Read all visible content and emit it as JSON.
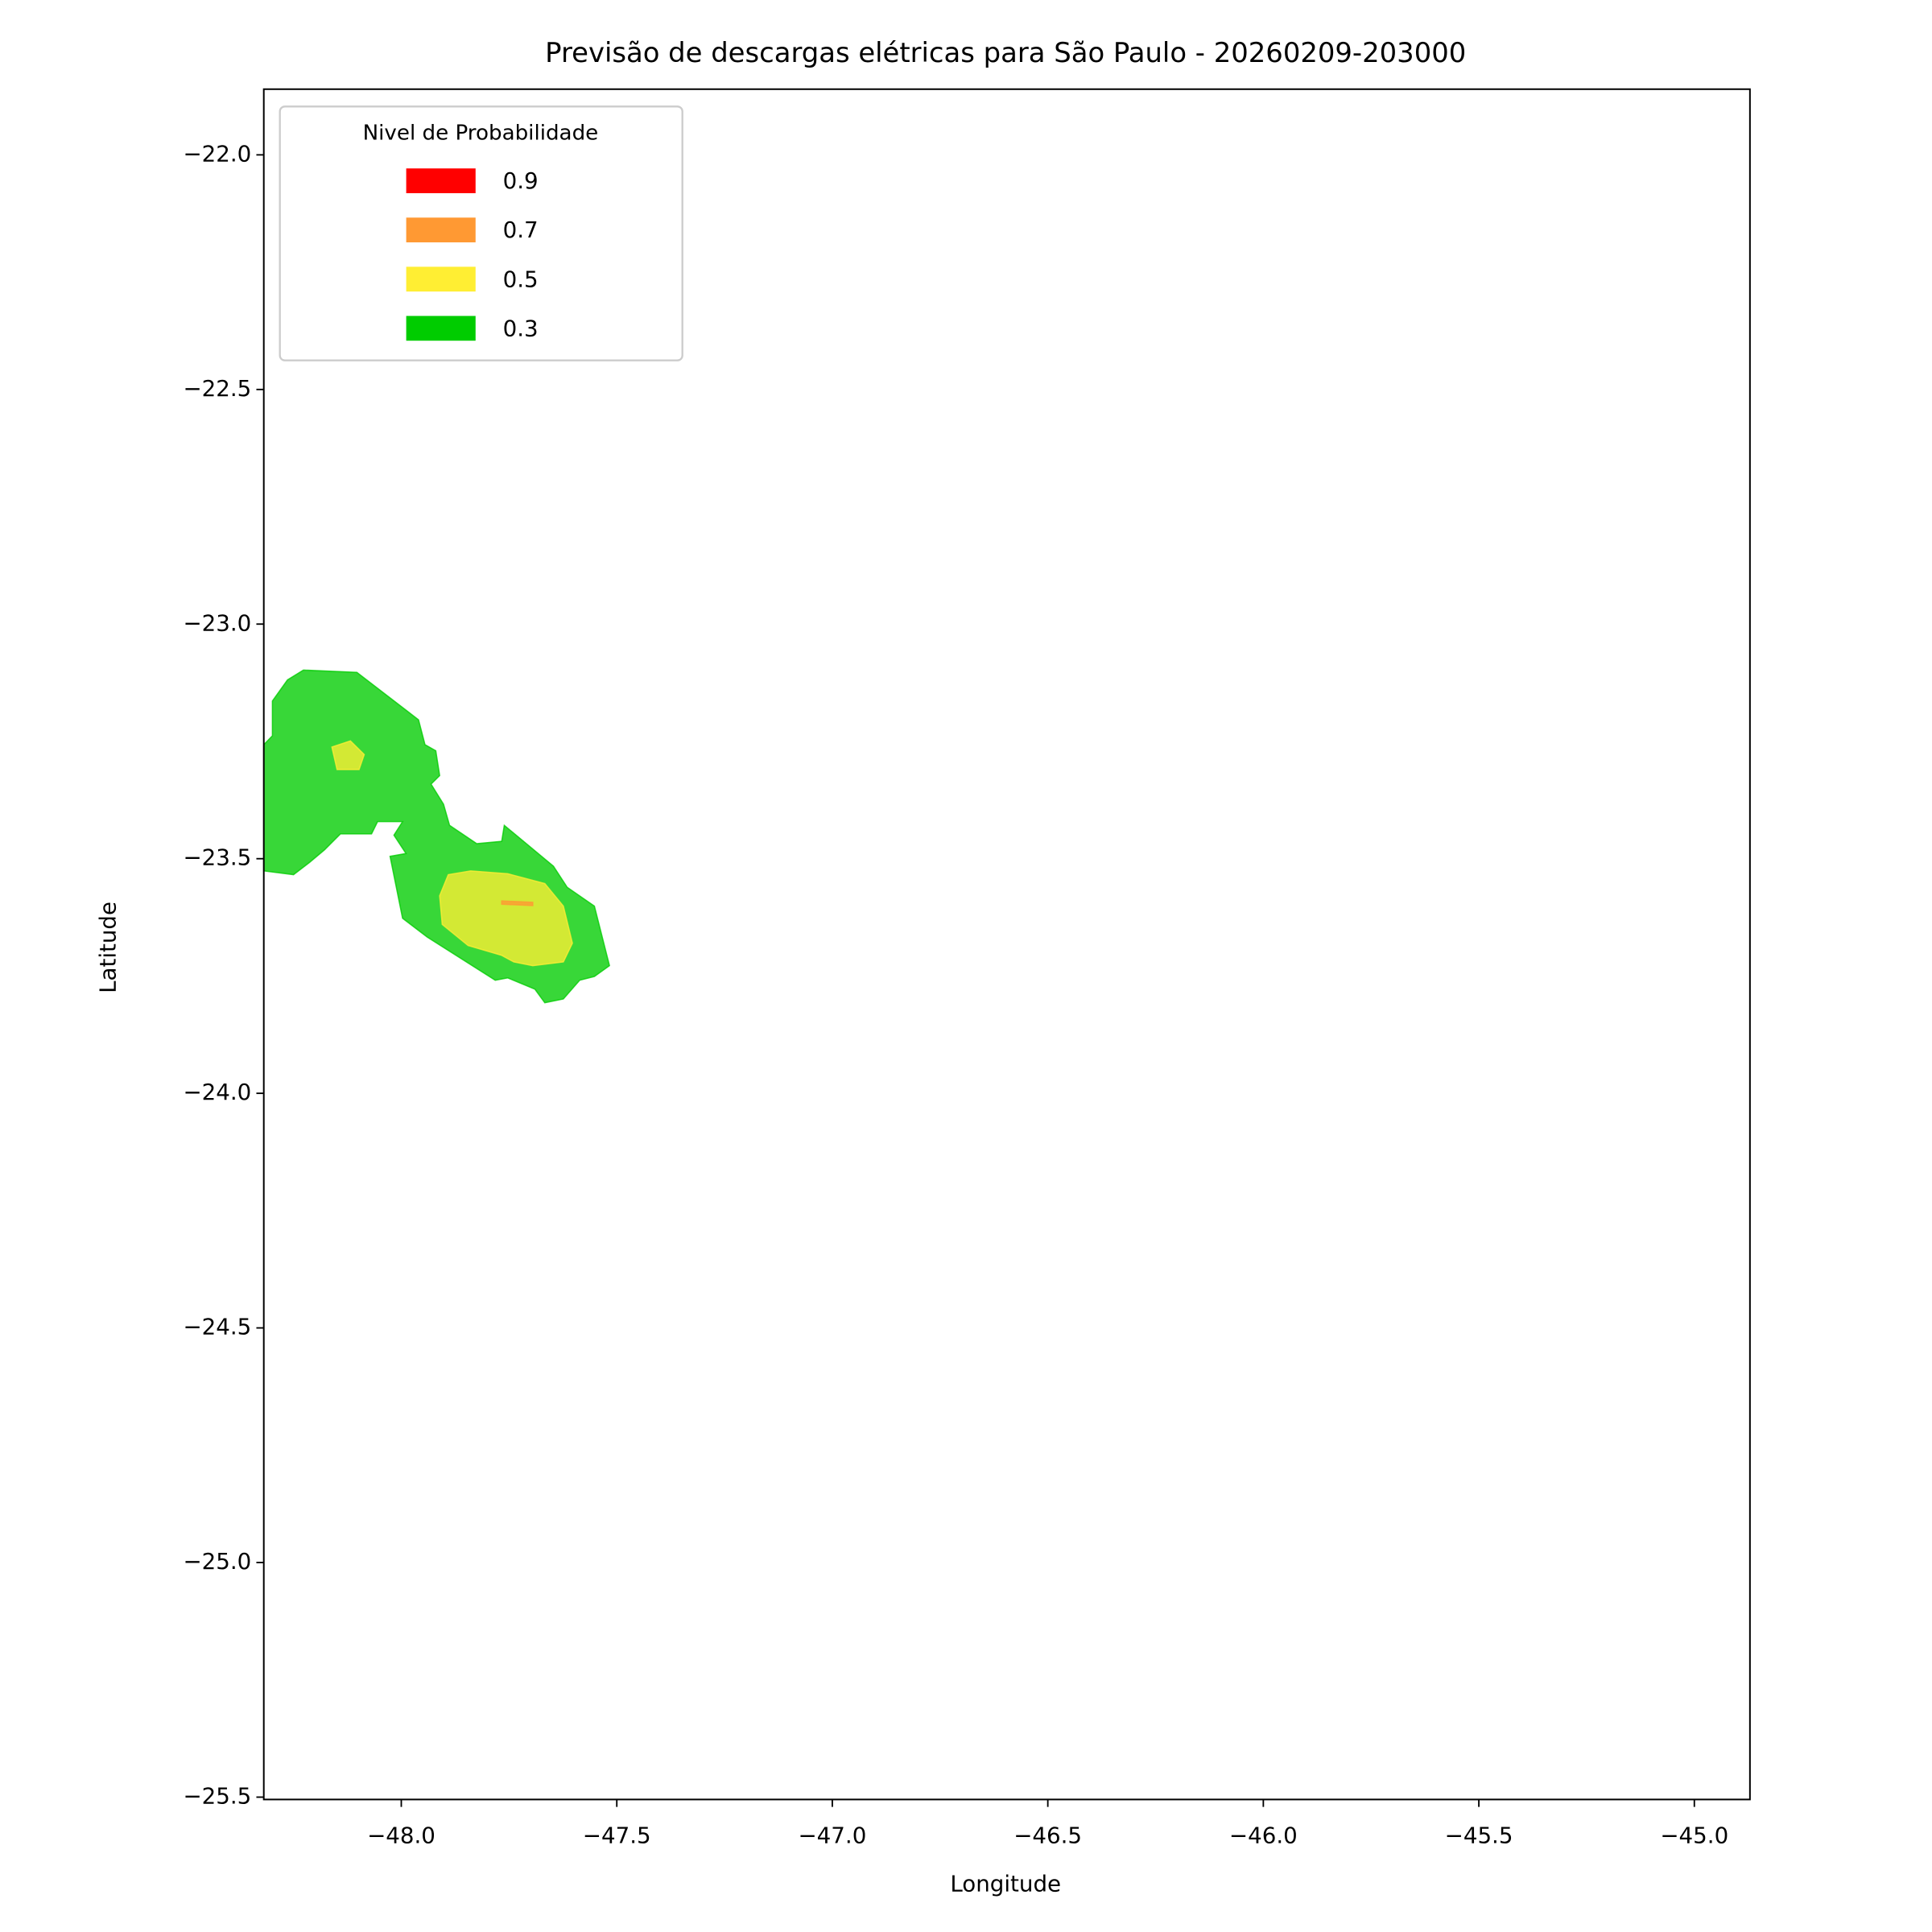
{
  "chart_data": {
    "type": "contour",
    "title": "Previsão de descargas elétricas para São Paulo - 20260209-203000",
    "x_label": "Longitude",
    "y_label": "Latitude",
    "legend_title": "Nivel de Probabilidade",
    "legend_position": "upper left",
    "grid": false,
    "alpha": 0.78,
    "xlim": [
      -48.319,
      -44.871
    ],
    "ylim": [
      -25.505,
      -21.86
    ],
    "xticks": [
      {
        "value": -48.0,
        "label": "−48.0"
      },
      {
        "value": -47.5,
        "label": "−47.5"
      },
      {
        "value": -47.0,
        "label": "−47.0"
      },
      {
        "value": -46.5,
        "label": "−46.5"
      },
      {
        "value": -46.0,
        "label": "−46.0"
      },
      {
        "value": -45.5,
        "label": "−45.5"
      },
      {
        "value": -45.0,
        "label": "−45.0"
      }
    ],
    "yticks": [
      {
        "value": -22.0,
        "label": "−22.0"
      },
      {
        "value": -22.5,
        "label": "−22.5"
      },
      {
        "value": -23.0,
        "label": "−23.0"
      },
      {
        "value": -23.5,
        "label": "−23.5"
      },
      {
        "value": -24.0,
        "label": "−24.0"
      },
      {
        "value": -24.5,
        "label": "−24.5"
      },
      {
        "value": -25.0,
        "label": "−25.0"
      },
      {
        "value": -25.5,
        "label": "−25.5"
      }
    ],
    "series": [
      {
        "name": "0.9",
        "color": "#ff0000",
        "polygons": []
      },
      {
        "name": "0.7",
        "color": "#ff9933",
        "polygons": [
          {
            "lon": [
              -47.767,
              -47.695,
              -47.695,
              -47.767
            ],
            "lat": [
              -23.59,
              -23.593,
              -23.6,
              -23.597
            ]
          }
        ]
      },
      {
        "name": "0.5",
        "color": "#ffee33",
        "polygons": [
          {
            "lon": [
              -48.161,
              -48.118,
              -48.086,
              -48.098,
              -48.149
            ],
            "lat": [
              -23.262,
              -23.249,
              -23.278,
              -23.31,
              -23.31
            ]
          },
          {
            "lon": [
              -47.911,
              -47.891,
              -47.839,
              -47.753,
              -47.667,
              -47.624,
              -47.603,
              -47.624,
              -47.695,
              -47.739,
              -47.767,
              -47.845,
              -47.905
            ],
            "lat": [
              -23.579,
              -23.534,
              -23.526,
              -23.532,
              -23.553,
              -23.601,
              -23.68,
              -23.72,
              -23.728,
              -23.72,
              -23.706,
              -23.685,
              -23.64
            ]
          }
        ]
      },
      {
        "name": "0.3",
        "color": "#00cc00",
        "polygons": [
          {
            "lon": [
              -48.299,
              -48.264,
              -48.227,
              -48.103,
              -47.96,
              -47.945,
              -47.92,
              -47.911,
              -47.931,
              -47.902,
              -47.888,
              -47.825,
              -47.767,
              -47.761,
              -47.647,
              -47.615,
              -47.552,
              -47.517,
              -47.552,
              -47.586,
              -47.624,
              -47.667,
              -47.69,
              -47.753,
              -47.782,
              -47.94,
              -47.997,
              -48.026,
              -47.989,
              -48.017,
              -47.997,
              -48.055,
              -48.069,
              -48.141,
              -48.178,
              -48.213,
              -48.25,
              -48.319,
              -48.319,
              -48.299
            ],
            "lat": [
              -23.164,
              -23.119,
              -23.098,
              -23.103,
              -23.204,
              -23.257,
              -23.27,
              -23.323,
              -23.341,
              -23.384,
              -23.429,
              -23.468,
              -23.463,
              -23.429,
              -23.516,
              -23.561,
              -23.601,
              -23.728,
              -23.751,
              -23.759,
              -23.799,
              -23.807,
              -23.778,
              -23.754,
              -23.759,
              -23.667,
              -23.627,
              -23.495,
              -23.489,
              -23.45,
              -23.421,
              -23.421,
              -23.447,
              -23.447,
              -23.481,
              -23.508,
              -23.534,
              -23.526,
              -23.257,
              -23.238
            ]
          }
        ]
      }
    ]
  }
}
